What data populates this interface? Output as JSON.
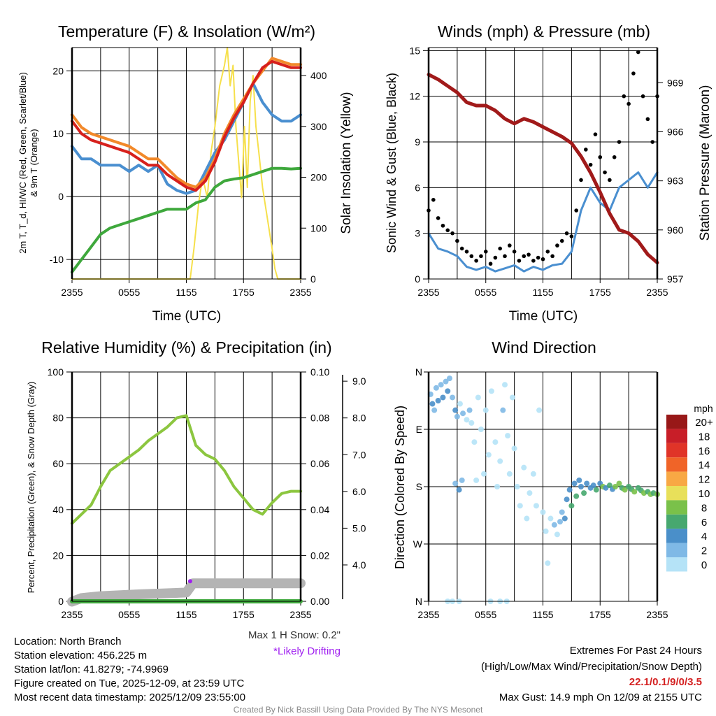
{
  "colors": {
    "temp_2m": "#d7201c",
    "temp_9m": "#f2892a",
    "wind_chill": "#4a8fd0",
    "dewpoint": "#3ea83c",
    "solar": "#f6e04c",
    "wind": "#4a8fd0",
    "gust": "#000000",
    "pressure": "#a11a1a",
    "rh": "#8cc63f",
    "precip": "#3ea83c",
    "snow": "#b4b4b4",
    "drifting": "#a020f0",
    "extremes": "#d42020"
  },
  "chart_data": [
    {
      "type": "line",
      "title": "Temperature (F) & Insolation (W/m²)",
      "xlabel": "Time (UTC)",
      "ylabel_line1": "2m T, T_d, HI/WC (Red, Green, Scarlet/Blue)",
      "ylabel_line2": "& 9m T (Orange)",
      "ylabel_right": "Solar Insolation (Yellow)",
      "x_ticks": [
        "2355",
        "0555",
        "1155",
        "1755",
        "2355"
      ],
      "y_ticks": [
        "-10",
        "0",
        "10",
        "20"
      ],
      "y_right_ticks": [
        "0",
        "100",
        "200",
        "300",
        "400"
      ],
      "ylim": [
        -13.1,
        23.7
      ],
      "ylim_right": [
        0,
        455
      ],
      "xlim_hours": [
        0,
        24
      ],
      "series": [
        {
          "name": "9m T",
          "hours_step": 1,
          "values": [
            13,
            11,
            10,
            9.5,
            9,
            8.5,
            8,
            7,
            6,
            6,
            4.5,
            3,
            2,
            1.5,
            3,
            6,
            10,
            13,
            15.5,
            18,
            20,
            22,
            21.5,
            21,
            21
          ]
        },
        {
          "name": "2m T",
          "hours_step": 1,
          "values": [
            12,
            10,
            9,
            8.5,
            8,
            7.5,
            7,
            6,
            5,
            5,
            3.5,
            2.5,
            1.5,
            1,
            2.5,
            5.5,
            9.5,
            12.5,
            15,
            18,
            20.5,
            21.5,
            21,
            20.5,
            20.5
          ]
        },
        {
          "name": "HI/WC",
          "hours_step": 1,
          "values": [
            8,
            6,
            6,
            5,
            5,
            5,
            4,
            5,
            4,
            5,
            2,
            1,
            0.5,
            1,
            4,
            7,
            9,
            12,
            15,
            18,
            15,
            13,
            12,
            12,
            13
          ]
        },
        {
          "name": "Td",
          "hours_step": 1,
          "values": [
            -12,
            -10,
            -8,
            -6,
            -5,
            -4.5,
            -4,
            -3.5,
            -3,
            -2.5,
            -2,
            -2,
            -2,
            -1,
            -0.5,
            1.5,
            2.5,
            2.8,
            3,
            3.5,
            4,
            4.5,
            4.5,
            4.4,
            4.5
          ]
        },
        {
          "name": "Solar",
          "axis": "right",
          "points": [
            [
              0,
              0
            ],
            [
              12.4,
              0
            ],
            [
              12.8,
              60
            ],
            [
              13.3,
              150
            ],
            [
              13.7,
              200
            ],
            [
              14.2,
              160
            ],
            [
              14.6,
              250
            ],
            [
              15,
              300
            ],
            [
              15.5,
              380
            ],
            [
              16,
              420
            ],
            [
              16.3,
              455
            ],
            [
              16.6,
              380
            ],
            [
              16.9,
              420
            ],
            [
              17.2,
              300
            ],
            [
              17.5,
              230
            ],
            [
              17.8,
              160
            ],
            [
              18.1,
              300
            ],
            [
              18.4,
              180
            ],
            [
              18.7,
              350
            ],
            [
              19,
              400
            ],
            [
              19.3,
              300
            ],
            [
              19.6,
              250
            ],
            [
              20,
              180
            ],
            [
              20.5,
              120
            ],
            [
              21,
              60
            ],
            [
              21.3,
              20
            ],
            [
              21.6,
              0
            ],
            [
              24,
              0
            ]
          ]
        }
      ]
    },
    {
      "type": "line",
      "title": "Winds (mph) & Pressure (mb)",
      "xlabel": "Time (UTC)",
      "ylabel": "Sonic Wind & Gust (Blue, Black)",
      "ylabel_right": "Station Pressure (Maroon)",
      "x_ticks": [
        "2355",
        "0555",
        "1155",
        "1755",
        "2355"
      ],
      "y_ticks": [
        "0",
        "3",
        "6",
        "9",
        "12",
        "15"
      ],
      "y_right_ticks": [
        "957",
        "960",
        "963",
        "966",
        "969"
      ],
      "ylim": [
        0,
        15.2
      ],
      "ylim_right": [
        957,
        971.15
      ],
      "xlim_hours": [
        0,
        24
      ],
      "series": [
        {
          "name": "Wind",
          "hours_step": 1,
          "values": [
            3,
            2,
            1.8,
            1.5,
            0.8,
            0.6,
            0.8,
            0.5,
            0.7,
            0.9,
            0.5,
            0.8,
            0.6,
            0.9,
            1,
            1.8,
            4.5,
            6,
            5,
            4.5,
            6,
            6.5,
            7,
            6,
            7
          ]
        },
        {
          "name": "Gust",
          "hours_step": 0.5,
          "values": [
            4.5,
            5.2,
            4,
            3.5,
            3.2,
            3,
            2.5,
            2,
            1.8,
            1.5,
            1.2,
            1.5,
            1.8,
            1,
            1.4,
            2,
            1.5,
            2.2,
            1.8,
            1.2,
            1.5,
            1.6,
            1.2,
            1.4,
            1.3,
            1.8,
            1.5,
            2.2,
            2.5,
            3,
            2.8,
            4.5,
            6.5,
            8.5,
            7.5,
            9.5,
            8,
            7,
            6.5,
            8,
            9,
            12,
            11.5,
            13.5,
            14.9,
            12,
            10.5,
            9,
            12
          ]
        },
        {
          "name": "Pressure",
          "axis": "right",
          "hours_step": 1,
          "values": [
            969.5,
            969.2,
            968.8,
            968.4,
            967.8,
            967.6,
            967.6,
            967.3,
            966.8,
            966.5,
            966.8,
            966.6,
            966.3,
            966,
            965.7,
            965.3,
            964.5,
            963.5,
            962.3,
            961,
            960,
            959.8,
            959.3,
            958.5,
            958
          ]
        }
      ]
    },
    {
      "type": "line",
      "title": "Relative Humidity (%) & Precipitation (in)",
      "ylabel": "Percent, Precipitation (Green), & Snow Depth (Gray)",
      "x_ticks": [
        "2355",
        "0555",
        "1155",
        "1755",
        "2355"
      ],
      "y_ticks": [
        "0",
        "20",
        "40",
        "60",
        "80",
        "100"
      ],
      "y_right_ticks": [
        "0.00",
        "0.02",
        "0.04",
        "0.06",
        "0.08",
        "0.10"
      ],
      "y_snow_ticks": [
        "4.0",
        "5.0",
        "6.0",
        "7.0",
        "8.0",
        "9.0"
      ],
      "ylim": [
        0,
        100
      ],
      "ylim_right": [
        0,
        0.1
      ],
      "ylim_snow": [
        3.01,
        9.25
      ],
      "xlim_hours": [
        0,
        24
      ],
      "series": [
        {
          "name": "Snow Depth",
          "points": [
            [
              0,
              3.0
            ],
            [
              1,
              3.1
            ],
            [
              3,
              3.15
            ],
            [
              7,
              3.2
            ],
            [
              12,
              3.25
            ],
            [
              12.7,
              3.5
            ],
            [
              24,
              3.5
            ]
          ]
        },
        {
          "name": "Precipitation",
          "hours_step": 24,
          "values": [
            0,
            0
          ]
        },
        {
          "name": "RH",
          "hours_step": 1,
          "values": [
            34,
            38,
            42,
            50,
            57,
            60,
            63,
            66,
            70,
            73,
            76,
            80,
            81,
            68,
            64,
            62,
            57,
            50,
            45,
            40,
            38,
            43,
            47,
            48,
            48
          ]
        },
        {
          "name": "Likely Drifting",
          "points": [
            [
              12.4,
              3.5
            ]
          ]
        }
      ],
      "snow_note": "Max 1 H Snow: 0.2\"",
      "drift_note": "*Likely Drifting"
    },
    {
      "type": "scatter",
      "title": "Wind Direction",
      "ylabel": "Direction (Colored By Speed)",
      "x_ticks": [
        "2355",
        "0555",
        "1155",
        "1755",
        "2355"
      ],
      "y_ticks": [
        "N",
        "E",
        "S",
        "W",
        "N"
      ],
      "ylim": [
        0,
        360
      ],
      "xlim_hours": [
        0,
        24
      ],
      "legend_title": "mph",
      "legend_labels": [
        "0",
        "2",
        "4",
        "6",
        "8",
        "10",
        "12",
        "14",
        "16",
        "18",
        "20+"
      ],
      "legend_colors": [
        "#b5e3f7",
        "#7fb9e6",
        "#4a8fc9",
        "#47a86f",
        "#7ac14a",
        "#e8e05a",
        "#f8a844",
        "#f06428",
        "#e03428",
        "#c81e28",
        "#981818"
      ],
      "points_hour_deg_mph": [
        [
          0.2,
          325,
          3
        ],
        [
          0.4,
          310,
          4
        ],
        [
          0.6,
          300,
          3
        ],
        [
          0.8,
          335,
          2
        ],
        [
          1,
          315,
          4
        ],
        [
          1.3,
          340,
          3
        ],
        [
          1.5,
          320,
          4
        ],
        [
          1.8,
          345,
          3
        ],
        [
          2,
          330,
          4
        ],
        [
          2.2,
          350,
          2
        ],
        [
          2.5,
          320,
          3
        ],
        [
          2.8,
          300,
          4
        ],
        [
          3,
          290,
          2
        ],
        [
          3.3,
          310,
          1
        ],
        [
          3.6,
          295,
          2
        ],
        [
          4,
          285,
          1
        ],
        [
          4.3,
          300,
          2
        ],
        [
          4.5,
          280,
          1
        ],
        [
          2.8,
          185,
          3
        ],
        [
          3.2,
          175,
          4
        ],
        [
          3.5,
          190,
          2
        ],
        [
          4.8,
          250,
          1
        ],
        [
          5,
          190,
          1
        ],
        [
          5.2,
          320,
          1
        ],
        [
          5.5,
          270,
          1
        ],
        [
          5.8,
          200,
          1
        ],
        [
          6,
          300,
          1
        ],
        [
          6.3,
          230,
          1
        ],
        [
          6.6,
          330,
          1
        ],
        [
          7,
          250,
          1
        ],
        [
          7.2,
          180,
          1
        ],
        [
          7.5,
          220,
          1
        ],
        [
          7.8,
          300,
          2
        ],
        [
          8,
          340,
          1
        ],
        [
          8.3,
          260,
          1
        ],
        [
          8.5,
          200,
          1
        ],
        [
          8.8,
          320,
          1
        ],
        [
          9,
          240,
          1
        ],
        [
          9.3,
          180,
          1
        ],
        [
          9.6,
          150,
          1
        ],
        [
          10,
          210,
          1
        ],
        [
          10.3,
          130,
          1
        ],
        [
          10.6,
          170,
          1
        ],
        [
          11,
          200,
          1
        ],
        [
          11.3,
          150,
          1
        ],
        [
          11.6,
          300,
          1
        ],
        [
          12,
          140,
          1
        ],
        [
          12.3,
          110,
          1
        ],
        [
          12.5,
          60,
          1
        ],
        [
          12.8,
          130,
          1
        ],
        [
          2,
          0,
          0
        ],
        [
          2.5,
          0,
          0
        ],
        [
          3.2,
          0,
          0
        ],
        [
          6.5,
          0,
          0
        ],
        [
          7.5,
          0,
          0
        ],
        [
          8.2,
          0,
          0
        ],
        [
          13.2,
          120,
          2
        ],
        [
          13.5,
          105,
          1
        ],
        [
          13.8,
          125,
          3
        ],
        [
          14,
          140,
          3
        ],
        [
          14.3,
          130,
          4
        ],
        [
          14.5,
          160,
          4
        ],
        [
          14.8,
          175,
          5
        ],
        [
          15,
          150,
          6
        ],
        [
          15.3,
          185,
          4
        ],
        [
          15.5,
          165,
          7
        ],
        [
          15.8,
          190,
          4
        ],
        [
          16,
          180,
          5
        ],
        [
          16.3,
          170,
          6
        ],
        [
          16.6,
          185,
          4
        ],
        [
          17,
          178,
          5
        ],
        [
          17.3,
          182,
          4
        ],
        [
          17.6,
          175,
          6
        ],
        [
          18,
          185,
          5
        ],
        [
          18.3,
          180,
          8
        ],
        [
          18.6,
          178,
          4
        ],
        [
          19,
          182,
          7
        ],
        [
          19.3,
          176,
          5
        ],
        [
          19.6,
          180,
          8
        ],
        [
          20,
          185,
          9
        ],
        [
          20.3,
          178,
          6
        ],
        [
          20.6,
          175,
          8
        ],
        [
          21,
          180,
          7
        ],
        [
          21.3,
          176,
          6
        ],
        [
          21.6,
          172,
          8
        ],
        [
          22,
          178,
          7
        ],
        [
          22.3,
          174,
          6
        ],
        [
          22.6,
          170,
          8
        ],
        [
          23,
          172,
          7
        ],
        [
          23.3,
          168,
          8
        ],
        [
          23.6,
          170,
          7
        ],
        [
          24,
          168,
          8
        ]
      ]
    }
  ],
  "footer": {
    "location": "Location: North Branch",
    "elevation": "Station elevation: 456.225 m",
    "latlon": "Station lat/lon: 41.8279; -74.9969",
    "created": "Figure created on Tue, 2025-12-09, at 23:59 UTC",
    "recent": "Most recent data timestamp: 2025/12/09 23:55:00",
    "extremes_title": "Extremes For Past 24 Hours",
    "extremes_sub": "(High/Low/Max Wind/Precipitation/Snow Depth)",
    "extremes_values": "22.1/0.1/9/0/3.5",
    "max_gust": "Max Gust: 14.9 mph On 12/09 at 2155 UTC",
    "credit": "Created By Nick Bassill Using Data Provided By The NYS Mesonet"
  }
}
